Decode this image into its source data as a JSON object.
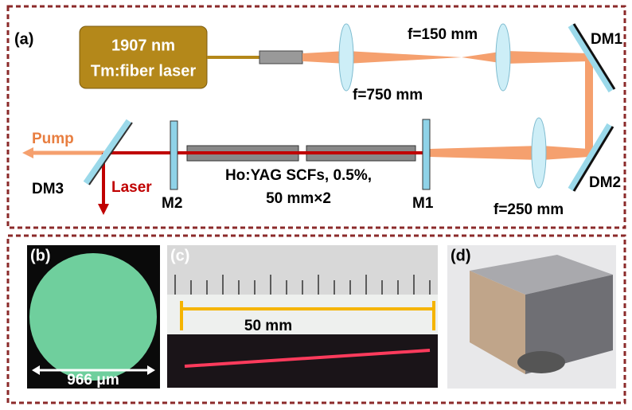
{
  "panel_a": {
    "label": "(a)",
    "laser_line1": "1907 nm",
    "laser_line2": "Tm:fiber laser",
    "lens1": "f=750 mm",
    "lens2": "f=150 mm",
    "lens3": "f=250 mm",
    "dm1": "DM1",
    "dm2": "DM2",
    "dm3": "DM3",
    "m1": "M1",
    "m2": "M2",
    "pump": "Pump",
    "laser": "Laser",
    "crystal_line1": "Ho:YAG SCFs, 0.5%,",
    "crystal_line2": "50 mm×2"
  },
  "panel_b": {
    "label": "(b)",
    "diameter": "966 μm"
  },
  "panel_c": {
    "label": "(c)",
    "length": "50 mm"
  },
  "panel_d": {
    "label": "(d)"
  }
}
